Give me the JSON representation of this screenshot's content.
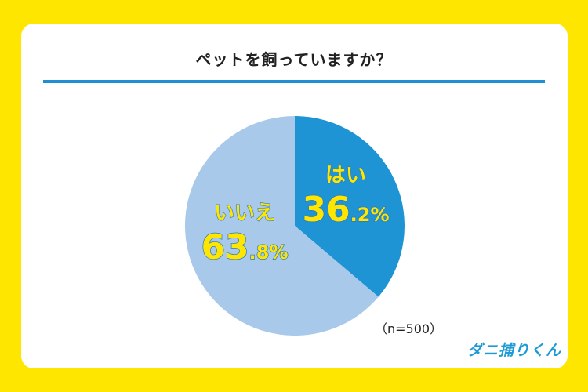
{
  "title": "ペットを飼っていますか？",
  "sample_note": "（n=500）",
  "logo_text": "ダニ捕りくん",
  "colors": {
    "background": "#ffe600",
    "card": "#ffffff",
    "accent_rule": "#1e90d2",
    "slice_yes": "#1e94d4",
    "slice_no": "#a9c9ea",
    "label_fill": "#ffe600",
    "label_stroke": "#2a78c0"
  },
  "chart_data": {
    "type": "pie",
    "title": "ペットを飼っていますか？",
    "slices": [
      {
        "label": "はい",
        "value": 36.2,
        "int_part": "36",
        "dec_part": ".2%"
      },
      {
        "label": "いいえ",
        "value": 63.8,
        "int_part": "63",
        "dec_part": ".8%"
      }
    ],
    "start": "12 o'clock, clockwise",
    "legend": "none (labels drawn inside slices)"
  }
}
